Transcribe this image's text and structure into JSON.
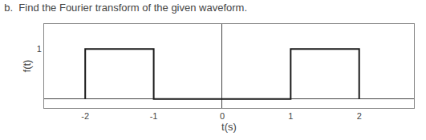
{
  "chart_data": {
    "type": "line",
    "title": "b.  Find the Fourier transform of the given waveform.",
    "x_label": "t(s)",
    "y_label": "f(t)",
    "series": [
      {
        "name": "f(t)",
        "color": "#1a1a1a",
        "x": [
          -2,
          -2,
          -1,
          -1,
          1,
          1,
          2,
          2
        ],
        "values": [
          0,
          1,
          1,
          0,
          0,
          1,
          1,
          0
        ]
      }
    ],
    "xlim": [
      -2.6,
      2.8
    ],
    "ylim": [
      -0.18,
      1.5
    ],
    "xticks": [
      -2,
      -1,
      0,
      1,
      2
    ],
    "yticks": [
      1
    ],
    "grid": false
  }
}
